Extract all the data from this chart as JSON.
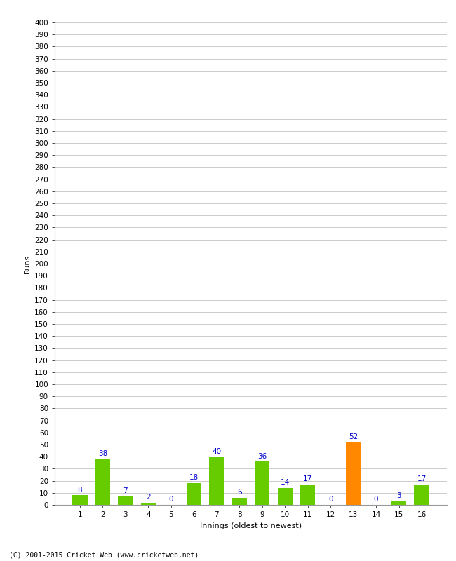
{
  "xlabel": "Innings (oldest to newest)",
  "ylabel": "Runs",
  "categories": [
    1,
    2,
    3,
    4,
    5,
    6,
    7,
    8,
    9,
    10,
    11,
    12,
    13,
    14,
    15,
    16
  ],
  "values": [
    8,
    38,
    7,
    2,
    0,
    18,
    40,
    6,
    36,
    14,
    17,
    0,
    52,
    0,
    3,
    17
  ],
  "bar_colors": [
    "#66cc00",
    "#66cc00",
    "#66cc00",
    "#66cc00",
    "#66cc00",
    "#66cc00",
    "#66cc00",
    "#66cc00",
    "#66cc00",
    "#66cc00",
    "#66cc00",
    "#66cc00",
    "#ff8800",
    "#66cc00",
    "#66cc00",
    "#66cc00"
  ],
  "ylim": [
    0,
    400
  ],
  "yticks": [
    0,
    10,
    20,
    30,
    40,
    50,
    60,
    70,
    80,
    90,
    100,
    110,
    120,
    130,
    140,
    150,
    160,
    170,
    180,
    190,
    200,
    210,
    220,
    230,
    240,
    250,
    260,
    270,
    280,
    290,
    300,
    310,
    320,
    330,
    340,
    350,
    360,
    370,
    380,
    390,
    400
  ],
  "footer": "(C) 2001-2015 Cricket Web (www.cricketweb.net)",
  "background_color": "#ffffff",
  "grid_color": "#cccccc",
  "label_color": "#0000cc",
  "label_fontsize": 7.5,
  "axis_tick_fontsize": 7.5,
  "xlabel_fontsize": 8,
  "ylabel_fontsize": 8,
  "bar_width": 0.65
}
